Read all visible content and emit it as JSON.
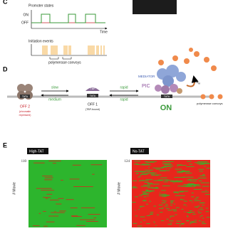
{
  "panel_c": {
    "label": "C",
    "promoter_title": "Promoter states",
    "on": "ON",
    "off": "OFF",
    "time": "Time",
    "initiation_title": "Initiation events",
    "convoys": "polymerase convoys"
  },
  "panel_d": {
    "label": "D",
    "off2": {
      "tata": "TATA",
      "name": "OFF 2",
      "note": [
        "(chromatin",
        "repressed)"
      ]
    },
    "slow": "slow",
    "medium": "medium",
    "off1": {
      "tbp": "TBP",
      "tata": "TATA",
      "name": "OFF 1",
      "note": "(TBP-bound)"
    },
    "rapid_forward": "rapid",
    "rapid_back": "rapid",
    "mediator": "MEDIATOR",
    "pic": "PIC",
    "on_tata": "TATA",
    "on": "ON",
    "k": "k",
    "k_sub": "in",
    "convoys": "polymerase convoys"
  },
  "panel_e": {
    "label": "E",
    "left": {
      "title": "High-TAT",
      "max": 110,
      "axis": "# Movie"
    },
    "right": {
      "title": "No-TAT",
      "max": 124,
      "axis": "# Movie"
    }
  }
}
